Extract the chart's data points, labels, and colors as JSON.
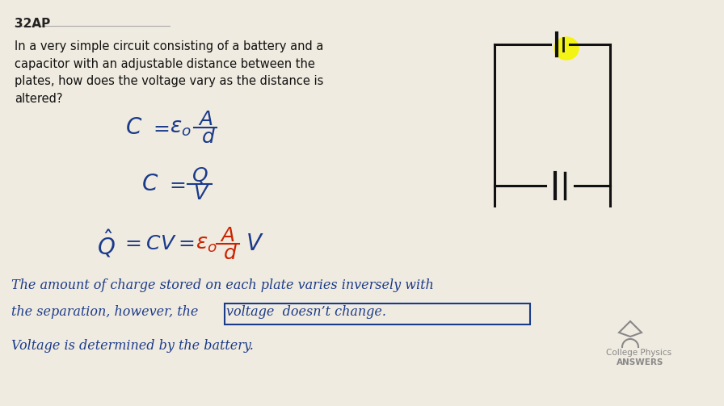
{
  "background_color": "#f0ebe0",
  "title_text": "32AP",
  "title_color": "#222222",
  "title_fontsize": 11,
  "question_text": "In a very simple circuit consisting of a battery and a\ncapacitor with an adjustable distance between the\nplates, how does the voltage vary as the distance is\naltered?",
  "question_color": "#111111",
  "question_fontsize": 10.5,
  "eq_color_blue": "#1a3a8a",
  "eq_color_red": "#cc2200",
  "handwriting_color": "#1a3a8a",
  "line1": "The amount of charge stored on each plate varies inversely with",
  "line2_pre": "the separation, however, the  ",
  "line2_box": "voltage  doesn’t change.",
  "line3": "Voltage is determined by the battery.",
  "box_color": "#1a3a8a",
  "logo_color": "#888888",
  "logo_text1": "College Physics",
  "logo_text2": "ANSWERS",
  "yellow_highlight": "#f5f500",
  "wire_color": "#111111"
}
